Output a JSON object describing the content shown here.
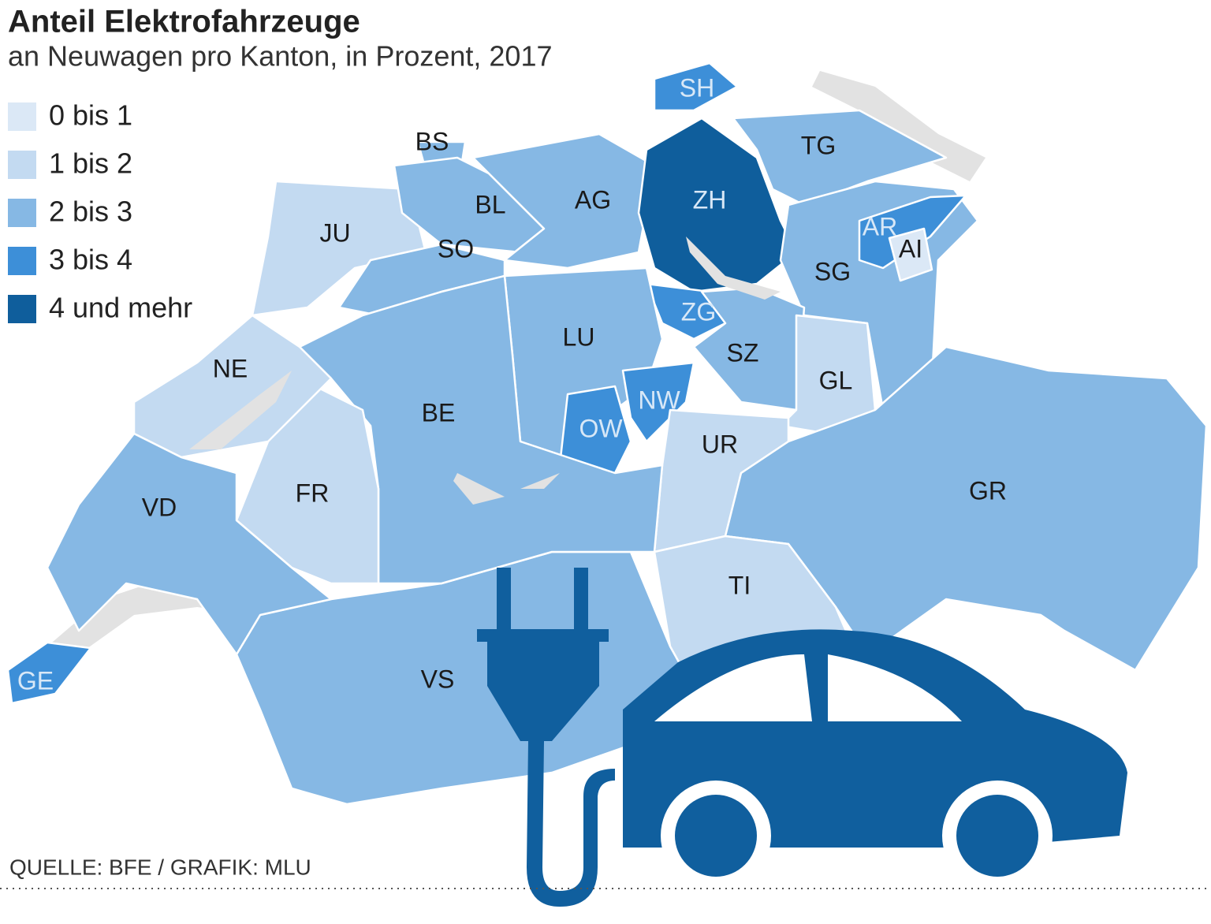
{
  "title": "Anteil Elektrofahrzeuge",
  "subtitle": "an Neuwagen pro Kanton, in Prozent, 2017",
  "legend": [
    {
      "label": "0 bis 1",
      "color": "#dbe8f6"
    },
    {
      "label": "1 bis 2",
      "color": "#c3daf1"
    },
    {
      "label": "2 bis 3",
      "color": "#86b8e4"
    },
    {
      "label": "3 bis 4",
      "color": "#3d8fd8"
    },
    {
      "label": "4 und mehr",
      "color": "#0f5e9c"
    }
  ],
  "cantons": [
    {
      "label": "JU",
      "color": "#c3daf1"
    },
    {
      "label": "BS",
      "color": "#86b8e4"
    },
    {
      "label": "BL",
      "color": "#86b8e4"
    },
    {
      "label": "SO",
      "color": "#86b8e4"
    },
    {
      "label": "AG",
      "color": "#86b8e4"
    },
    {
      "label": "ZH",
      "color": "#0f5e9c"
    },
    {
      "label": "SH",
      "color": "#3d8fd8"
    },
    {
      "label": "TG",
      "color": "#86b8e4"
    },
    {
      "label": "SG",
      "color": "#86b8e4"
    },
    {
      "label": "AR",
      "color": "#3d8fd8"
    },
    {
      "label": "AI",
      "color": "#dbe8f6"
    },
    {
      "label": "ZG",
      "color": "#3d8fd8"
    },
    {
      "label": "SZ",
      "color": "#86b8e4"
    },
    {
      "label": "GL",
      "color": "#c3daf1"
    },
    {
      "label": "LU",
      "color": "#86b8e4"
    },
    {
      "label": "OW",
      "color": "#3d8fd8"
    },
    {
      "label": "NW",
      "color": "#3d8fd8"
    },
    {
      "label": "UR",
      "color": "#c3daf1"
    },
    {
      "label": "GR",
      "color": "#86b8e4"
    },
    {
      "label": "TI",
      "color": "#c3daf1"
    },
    {
      "label": "VS",
      "color": "#86b8e4"
    },
    {
      "label": "BE",
      "color": "#86b8e4"
    },
    {
      "label": "FR",
      "color": "#c3daf1"
    },
    {
      "label": "NE",
      "color": "#c3daf1"
    },
    {
      "label": "VD",
      "color": "#86b8e4"
    },
    {
      "label": "GE",
      "color": "#3d8fd8"
    }
  ],
  "source": "QUELLE: BFE / GRAFIK: MLU"
}
